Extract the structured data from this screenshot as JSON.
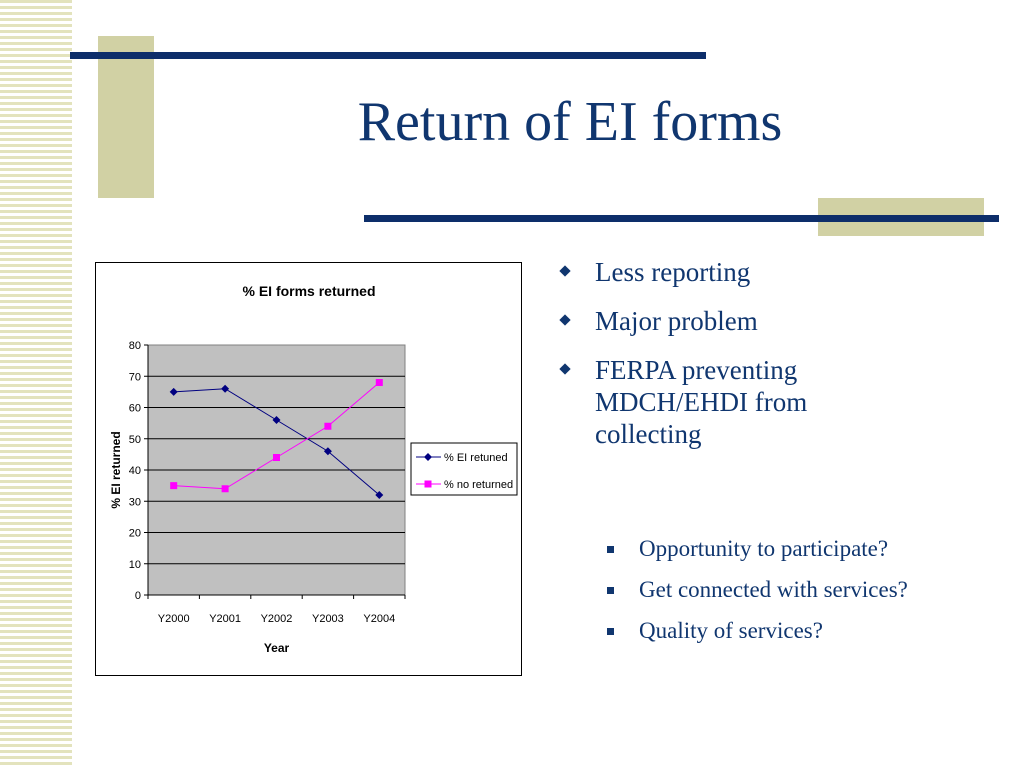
{
  "slide": {
    "title": "Return of EI forms",
    "bullets": [
      {
        "text": "Less reporting"
      },
      {
        "text": "Major problem"
      },
      {
        "text": "FERPA preventing MDCH/EHDI from collecting"
      }
    ],
    "sub_bullets": [
      {
        "text": "Opportunity to participate?"
      },
      {
        "text": "Get connected with services?"
      },
      {
        "text": "Quality of services?"
      }
    ]
  },
  "colors": {
    "title": "#10366f",
    "deco_bar": "#0d2e6a",
    "deco_block": "#d1d1a4",
    "plot_bg": "#c0c0c0",
    "series1": "#000080",
    "series2": "#ff00ff"
  },
  "chart_data": {
    "type": "line",
    "title": "% EI forms returned",
    "xlabel": "Year",
    "ylabel": "% EI returned",
    "categories": [
      "Y2000",
      "Y2001",
      "Y2002",
      "Y2003",
      "Y2004"
    ],
    "ylim": [
      0,
      80
    ],
    "yticks": [
      0,
      10,
      20,
      30,
      40,
      50,
      60,
      70,
      80
    ],
    "grid": true,
    "legend_position": "right",
    "series": [
      {
        "name": "% EI retuned",
        "values": [
          65,
          66,
          56,
          46,
          32
        ],
        "marker": "diamond"
      },
      {
        "name": "% no returned",
        "values": [
          35,
          34,
          44,
          54,
          68
        ],
        "marker": "square"
      }
    ]
  }
}
